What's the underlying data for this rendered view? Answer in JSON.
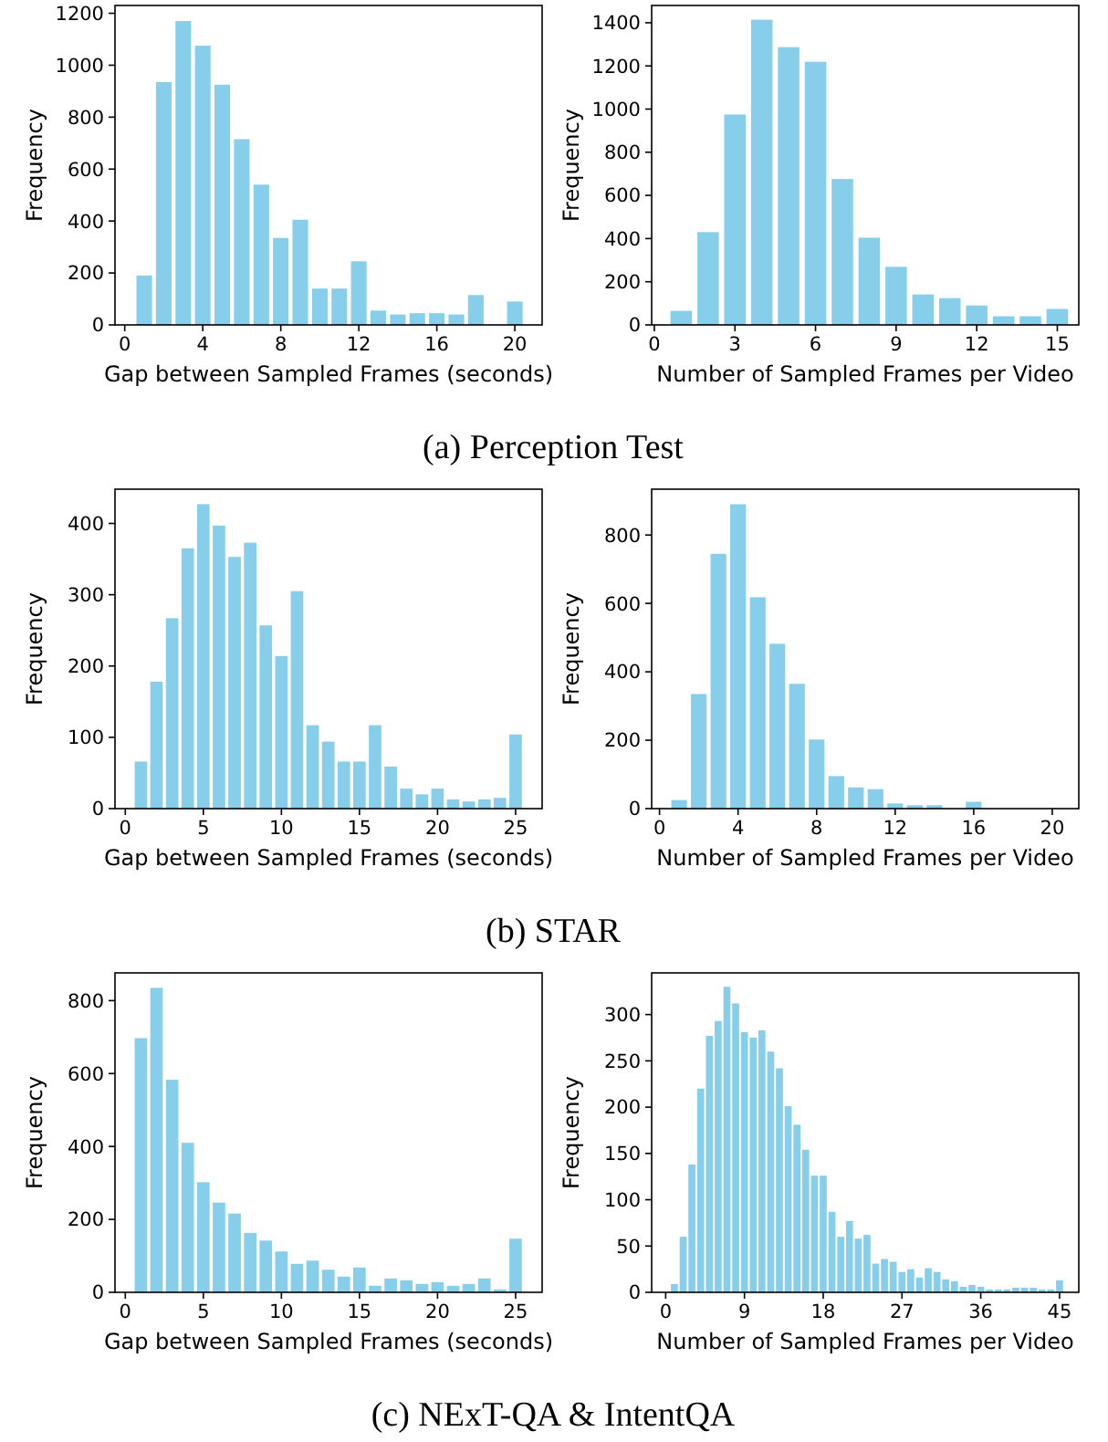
{
  "chart_data": [
    {
      "type": "bar",
      "xlabel": "Gap between Sampled Frames (seconds)",
      "ylabel": "Frequency",
      "color": "#87ceeb",
      "x": [
        1,
        2,
        3,
        4,
        5,
        6,
        7,
        8,
        9,
        10,
        11,
        12,
        13,
        14,
        15,
        16,
        17,
        18,
        20
      ],
      "values": [
        190,
        935,
        1170,
        1075,
        925,
        715,
        540,
        335,
        405,
        140,
        140,
        245,
        55,
        40,
        45,
        45,
        40,
        115,
        90
      ],
      "xlim": [
        -0.5,
        21.4
      ],
      "xticks": [
        0,
        4,
        8,
        12,
        16,
        20
      ],
      "ylim": [
        0,
        1230
      ],
      "yticks": [
        0,
        200,
        400,
        600,
        800,
        1000,
        1200
      ],
      "annotations": [
        "(a) Perception Test"
      ]
    },
    {
      "type": "bar",
      "xlabel": "Number of Sampled Frames per Video",
      "ylabel": "Frequency",
      "color": "#87ceeb",
      "x": [
        1,
        2,
        3,
        4,
        5,
        6,
        7,
        8,
        9,
        10,
        11,
        12,
        13,
        14,
        15
      ],
      "values": [
        65,
        430,
        975,
        1414,
        1287,
        1219,
        676,
        404,
        269,
        141,
        124,
        90,
        40,
        40,
        74
      ],
      "xlim": [
        -0.1,
        15.8
      ],
      "xticks": [
        0,
        3,
        6,
        9,
        12,
        15
      ],
      "ylim": [
        0,
        1480
      ],
      "yticks": [
        0,
        200,
        400,
        600,
        800,
        1000,
        1200,
        1400
      ]
    },
    {
      "type": "bar",
      "xlabel": "Gap between Sampled Frames (seconds)",
      "ylabel": "Frequency",
      "color": "#87ceeb",
      "x": [
        1,
        2,
        3,
        4,
        5,
        6,
        7,
        8,
        9,
        10,
        11,
        12,
        13,
        14,
        15,
        16,
        17,
        18,
        19,
        20,
        21,
        22,
        23,
        24,
        25
      ],
      "values": [
        66,
        178,
        267,
        365,
        427,
        397,
        353,
        373,
        257,
        214,
        305,
        117,
        94,
        66,
        66,
        117,
        59,
        28,
        20,
        28,
        13,
        10,
        13,
        15,
        104
      ],
      "xlim": [
        -0.66,
        26.7
      ],
      "xticks": [
        0,
        5,
        10,
        15,
        20,
        25
      ],
      "ylim": [
        0,
        448
      ],
      "yticks": [
        0,
        100,
        200,
        300,
        400
      ],
      "annotations": [
        "(b) STAR"
      ]
    },
    {
      "type": "bar",
      "xlabel": "Number of Sampled Frames per Video",
      "ylabel": "Frequency",
      "color": "#87ceeb",
      "x": [
        1,
        2,
        3,
        4,
        5,
        6,
        7,
        8,
        9,
        10,
        11,
        12,
        13,
        14,
        16
      ],
      "values": [
        25,
        335,
        745,
        890,
        618,
        482,
        365,
        202,
        95,
        62,
        57,
        15,
        10,
        10,
        20
      ],
      "xlim": [
        -0.4,
        21.35
      ],
      "xticks": [
        0,
        4,
        8,
        12,
        16,
        20
      ],
      "ylim": [
        0,
        934
      ],
      "yticks": [
        0,
        200,
        400,
        600,
        800
      ]
    },
    {
      "type": "bar",
      "xlabel": "Gap between Sampled Frames (seconds)",
      "ylabel": "Frequency",
      "color": "#87ceeb",
      "x": [
        1,
        2,
        3,
        4,
        5,
        6,
        7,
        8,
        9,
        10,
        11,
        12,
        13,
        14,
        15,
        16,
        17,
        18,
        19,
        20,
        21,
        22,
        23,
        24,
        25
      ],
      "values": [
        697,
        835,
        583,
        410,
        302,
        246,
        216,
        163,
        142,
        112,
        78,
        87,
        62,
        43,
        68,
        18,
        38,
        33,
        23,
        28,
        18,
        23,
        38,
        8,
        147
      ],
      "xlim": [
        -0.66,
        26.7
      ],
      "xticks": [
        0,
        5,
        10,
        15,
        20,
        25
      ],
      "ylim": [
        0,
        876
      ],
      "yticks": [
        0,
        200,
        400,
        600,
        800
      ],
      "annotations": [
        "(c) NExT-QA & IntentQA"
      ]
    },
    {
      "type": "bar",
      "xlabel": "Number of Sampled Frames per Video",
      "ylabel": "Frequency",
      "color": "#87ceeb",
      "x": [
        1,
        2,
        3,
        4,
        5,
        6,
        7,
        8,
        9,
        10,
        11,
        12,
        13,
        14,
        15,
        16,
        17,
        18,
        19,
        20,
        21,
        22,
        23,
        24,
        25,
        26,
        27,
        28,
        29,
        30,
        31,
        32,
        33,
        34,
        35,
        36,
        37,
        38,
        39,
        40,
        41,
        42,
        43,
        44,
        45
      ],
      "values": [
        9,
        60,
        138,
        220,
        277,
        293,
        330,
        312,
        281,
        275,
        283,
        260,
        242,
        201,
        181,
        154,
        126,
        126,
        87,
        60,
        77,
        58,
        62,
        31,
        36,
        33,
        22,
        25,
        16,
        26,
        22,
        14,
        12,
        6,
        8,
        6,
        3,
        3,
        3,
        5,
        5,
        5,
        3,
        3,
        13
      ],
      "xlim": [
        -1.6,
        47.2
      ],
      "xticks": [
        0,
        9,
        18,
        27,
        36,
        45
      ],
      "ylim": [
        0,
        345
      ],
      "yticks": [
        0,
        50,
        100,
        150,
        200,
        250,
        300
      ]
    }
  ]
}
